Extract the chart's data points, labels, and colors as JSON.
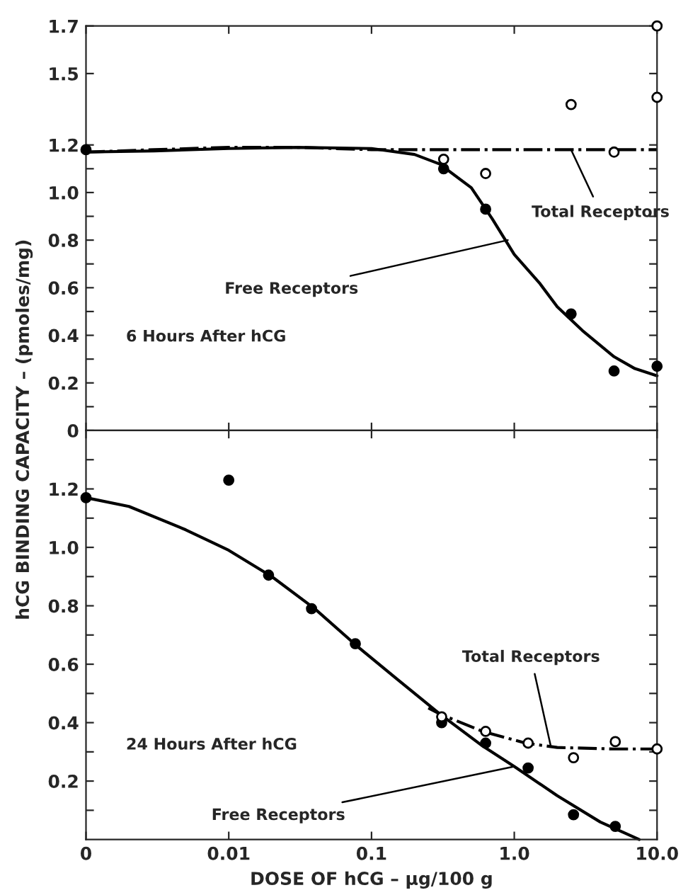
{
  "chart_data": [
    {
      "type": "line",
      "ylabel": "hCG BINDING CAPACITY – (pmoles/mg)",
      "log": "x",
      "grid": false,
      "tick_labels": "y",
      "xlim": [
        0.001,
        10
      ],
      "xticks": [
        {
          "value": 0.001,
          "label": null
        },
        {
          "value": 0.01,
          "label": null
        },
        {
          "value": 0.1,
          "label": null
        },
        {
          "value": 1,
          "label": null
        },
        {
          "value": 10,
          "label": null
        }
      ],
      "ylim": [
        0,
        1.7
      ],
      "yticks": [
        0,
        {
          "value": 0.1,
          "label": null
        },
        0.2,
        {
          "value": 0.3,
          "label": null
        },
        0.4,
        {
          "value": 0.5,
          "label": null
        },
        0.6,
        {
          "value": 0.7,
          "label": null
        },
        0.8,
        {
          "value": 0.9,
          "label": null
        },
        {
          "value": 1.0,
          "label": "1.0"
        },
        {
          "value": 1.1,
          "label": null
        },
        1.2,
        1.5,
        1.7
      ],
      "series": [
        {
          "line_style": "solid",
          "marker": "none",
          "color": "#000000",
          "x": [
            0.001,
            0.003,
            0.01,
            0.03,
            0.1,
            0.2,
            0.3,
            0.5,
            0.7,
            1.0,
            1.5,
            2,
            3,
            5,
            7,
            10
          ],
          "values": [
            1.17,
            1.175,
            1.185,
            1.19,
            1.185,
            1.16,
            1.12,
            1.02,
            0.89,
            0.74,
            0.62,
            0.52,
            0.42,
            0.31,
            0.26,
            0.23
          ]
        },
        {
          "line_style": "dashed",
          "marker": "none",
          "color": "#000000",
          "x": [
            0.001,
            0.003,
            0.01,
            0.03,
            0.1,
            0.3,
            1,
            3,
            10
          ],
          "values": [
            1.17,
            1.18,
            1.19,
            1.19,
            1.18,
            1.18,
            1.18,
            1.18,
            1.18
          ]
        },
        {
          "type": "scatter",
          "marker": "circle",
          "color": "#000000",
          "x": [
            0.001,
            0.32,
            0.63,
            2.5,
            5.0,
            10
          ],
          "values": [
            1.18,
            1.1,
            0.93,
            0.49,
            0.25,
            0.27
          ]
        },
        {
          "type": "scatter",
          "marker": "circle",
          "color": "#ffffff",
          "x": [
            0.32,
            0.63,
            2.5,
            5.0,
            10,
            10
          ],
          "values": [
            1.14,
            1.08,
            1.37,
            1.17,
            1.7,
            1.4
          ]
        }
      ],
      "annotations": [
        "6 Hours After hCG",
        {
          "text": "Total Receptors",
          "x": 2.5,
          "y": 1.18
        },
        {
          "text": "Free Receptors",
          "x": 0.9,
          "y": 0.8
        }
      ]
    },
    {
      "type": "line",
      "xlabel": "DOSE OF hCG – μg/100 g",
      "log": "x",
      "grid": false,
      "xlim": [
        0.001,
        10
      ],
      "xticks": [
        {
          "value": 0.001,
          "label": "0"
        },
        0.01,
        0.1,
        {
          "value": 1,
          "label": "1.0"
        },
        {
          "value": 10,
          "label": "10.0"
        }
      ],
      "ylim": [
        0,
        1.4
      ],
      "yticks": [
        {
          "value": 0.1,
          "label": null
        },
        0.2,
        {
          "value": 0.3,
          "label": null
        },
        0.4,
        {
          "value": 0.5,
          "label": null
        },
        0.6,
        {
          "value": 0.7,
          "label": null
        },
        0.8,
        {
          "value": 0.9,
          "label": null
        },
        {
          "value": 1.0,
          "label": "1.0"
        },
        {
          "value": 1.1,
          "label": null
        },
        1.2,
        {
          "value": 1.3,
          "label": null
        }
      ],
      "series": [
        {
          "line_style": "solid",
          "marker": "none",
          "color": "#000000",
          "x": [
            0.001,
            0.002,
            0.005,
            0.01,
            0.02,
            0.04,
            0.08,
            0.15,
            0.3,
            0.6,
            1.0,
            2,
            4,
            7.5
          ],
          "values": [
            1.17,
            1.14,
            1.06,
            0.99,
            0.9,
            0.79,
            0.66,
            0.55,
            0.43,
            0.32,
            0.25,
            0.15,
            0.06,
            0.0
          ]
        },
        {
          "line_style": "dashed",
          "marker": "none",
          "color": "#000000",
          "x": [
            0.25,
            0.3,
            0.6,
            1.2,
            2,
            5,
            10
          ],
          "values": [
            0.45,
            0.43,
            0.37,
            0.33,
            0.315,
            0.31,
            0.31
          ]
        },
        {
          "type": "scatter",
          "marker": "circle",
          "color": "#000000",
          "x": [
            0.001,
            0.01,
            0.019,
            0.038,
            0.077,
            0.31,
            0.63,
            1.25,
            2.6,
            5.1
          ],
          "values": [
            1.17,
            1.23,
            0.905,
            0.79,
            0.67,
            0.4,
            0.33,
            0.245,
            0.085,
            0.045
          ]
        },
        {
          "type": "scatter",
          "marker": "circle",
          "color": "#ffffff",
          "x": [
            0.31,
            0.63,
            1.25,
            2.6,
            5.1,
            10
          ],
          "values": [
            0.42,
            0.37,
            0.33,
            0.28,
            0.335,
            0.31
          ]
        }
      ],
      "annotations": [
        "24 Hours After hCG",
        {
          "text": "Total Receptors",
          "x": 1.8,
          "y": 0.32
        },
        {
          "text": "Free Receptors",
          "x": 1.0,
          "y": 0.25
        }
      ]
    }
  ]
}
